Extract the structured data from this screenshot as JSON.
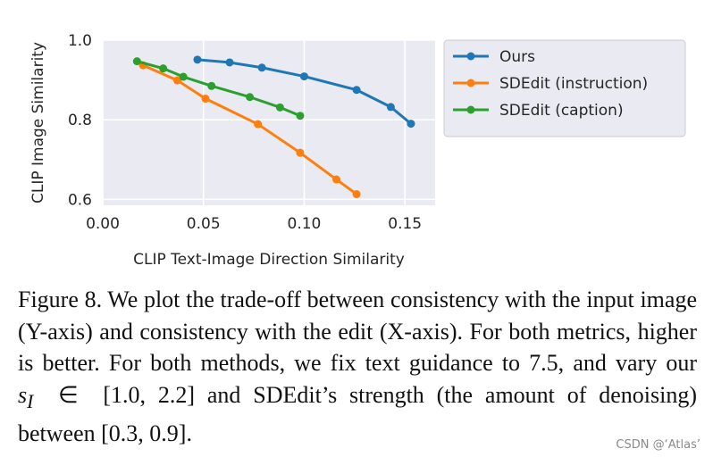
{
  "chart_data": {
    "type": "line",
    "title": "",
    "xlabel": "CLIP Text-Image Direction Similarity",
    "ylabel": "CLIP Image Similarity",
    "xlim": [
      0.0,
      0.165
    ],
    "ylim": [
      0.585,
      1.0
    ],
    "xticks": [
      0.0,
      0.05,
      0.1,
      0.15
    ],
    "xtick_labels": [
      "0.00",
      "0.05",
      "0.10",
      "0.15"
    ],
    "yticks": [
      0.6,
      0.8,
      1.0
    ],
    "ytick_labels": [
      "0.6",
      "0.8",
      "1.0"
    ],
    "grid": true,
    "legend_position": "right outside",
    "series": [
      {
        "name": "Ours",
        "color": "#1f77b4",
        "x": [
          0.047,
          0.063,
          0.079,
          0.1,
          0.126,
          0.143,
          0.153
        ],
        "y": [
          0.951,
          0.944,
          0.931,
          0.909,
          0.875,
          0.832,
          0.79
        ]
      },
      {
        "name": "SDEdit (instruction)",
        "color": "#ff7f0e",
        "x": [
          0.02,
          0.037,
          0.051,
          0.077,
          0.098,
          0.116,
          0.126
        ],
        "y": [
          0.937,
          0.899,
          0.853,
          0.789,
          0.717,
          0.65,
          0.613
        ]
      },
      {
        "name": "SDEdit (caption)",
        "color": "#2ca02c",
        "x": [
          0.017,
          0.03,
          0.04,
          0.054,
          0.073,
          0.088,
          0.098
        ],
        "y": [
          0.947,
          0.929,
          0.908,
          0.885,
          0.857,
          0.831,
          0.81
        ]
      }
    ]
  },
  "caption": {
    "part1": "Figure 8. We plot the trade-off between consistency with the input image (Y-axis) and consistency with the edit (X-axis). For both metrics, higher is better. For both methods, we fix text guidance to 7.5, and vary our ",
    "sym_s": "s",
    "sym_sub": "I",
    "sym_in": "∈",
    "range1": "[1.0, 2.2]",
    "part2": " and SDEdit’s strength (the amount of denoising) between ",
    "range2": "[0.3, 0.9]",
    "part3": "."
  },
  "watermark": "CSDN @‘Atlas’"
}
